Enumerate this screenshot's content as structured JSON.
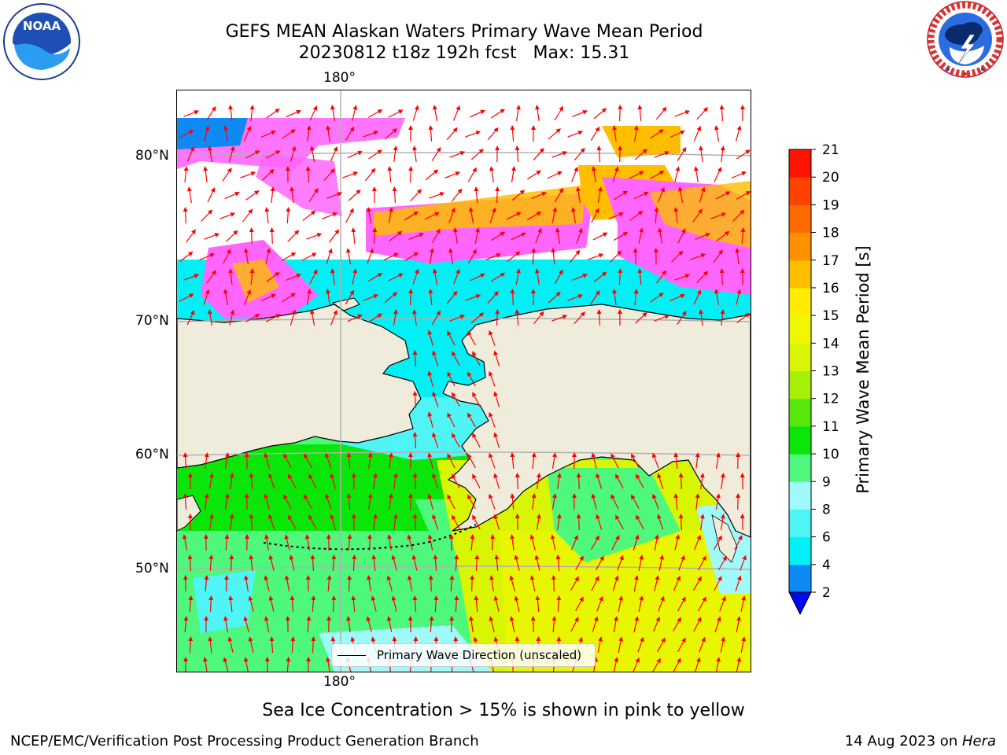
{
  "title": {
    "line1": "GEFS MEAN Alaskan Waters Primary Wave Mean Period",
    "line2": "20230812 t18z 192h fcst   Max: 15.31"
  },
  "logos": {
    "left": {
      "icon": "noaa-logo-icon",
      "text": "NOAA"
    },
    "right": {
      "icon": "nws-logo-icon",
      "ring_text": "NATIONAL WEATHER SERVICE"
    }
  },
  "map": {
    "lon_top_label": "180°",
    "lon_bottom_label": "180°",
    "lat_labels": [
      "80°N",
      "70°N",
      "60°N",
      "50°N"
    ],
    "legend": {
      "label": "Primary Wave Direction (unscaled)"
    },
    "land_color": "#efecdc",
    "arrow_color": "#ff0000"
  },
  "colorbar": {
    "label": "Primary Wave Mean Period [s]",
    "ticks": [
      "21",
      "20",
      "19",
      "18",
      "17",
      "16",
      "15",
      "14",
      "13",
      "12",
      "11",
      "10",
      "9",
      "8",
      "6",
      "4",
      "2"
    ],
    "levels": [
      {
        "from": 2,
        "to": 4,
        "color": "#0f8af5"
      },
      {
        "from": 4,
        "to": 6,
        "color": "#00f0f5"
      },
      {
        "from": 6,
        "to": 8,
        "color": "#4ff5f5"
      },
      {
        "from": 8,
        "to": 9,
        "color": "#a0fafa"
      },
      {
        "from": 9,
        "to": 10,
        "color": "#4ef87c"
      },
      {
        "from": 10,
        "to": 11,
        "color": "#0ae60a"
      },
      {
        "from": 11,
        "to": 12,
        "color": "#55e80a"
      },
      {
        "from": 12,
        "to": 13,
        "color": "#a8f008"
      },
      {
        "from": 13,
        "to": 14,
        "color": "#d8f504"
      },
      {
        "from": 14,
        "to": 15,
        "color": "#f0f800"
      },
      {
        "from": 15,
        "to": 16,
        "color": "#ffec00"
      },
      {
        "from": 16,
        "to": 17,
        "color": "#ffbe00"
      },
      {
        "from": 17,
        "to": 18,
        "color": "#ff9000"
      },
      {
        "from": 18,
        "to": 19,
        "color": "#ff6a00"
      },
      {
        "from": 19,
        "to": 20,
        "color": "#ff4200"
      },
      {
        "from": 20,
        "to": 21,
        "color": "#ff1400"
      }
    ],
    "under_color": "#0008f0"
  },
  "caption": "Sea Ice Concentration > 15% is shown in pink to yellow",
  "footer": {
    "left": "NCEP/EMC/Verification Post Processing Product Generation Branch",
    "right_date": "14 Aug 2023 on ",
    "right_machine": "Hera"
  }
}
